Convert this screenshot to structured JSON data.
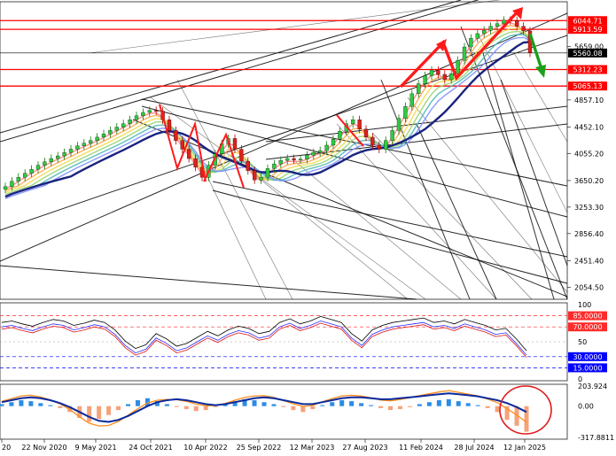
{
  "chart_data": [
    {
      "type": "candlestick",
      "panel": "main",
      "y_ticks": [
        6044.71,
        5913.59,
        5659.0,
        5560.08,
        5312.23,
        5065.13,
        4857.1,
        4452.1,
        4055.2,
        3650.2,
        3253.3,
        2856.4,
        2451.4,
        2054.5
      ],
      "ylim": [
        1900,
        6300
      ],
      "x_tick_labels": [
        "20",
        "22 Nov 2020",
        "9 May 2021",
        "24 Oct 2021",
        "10 Apr 2022",
        "25 Sep 2022",
        "12 Mar 2023",
        "27 Aug 2023",
        "11 Feb 2024",
        "28 Jul 2024",
        "12 Jan 2025"
      ],
      "price_series": [
        3560,
        3640,
        3700,
        3760,
        3820,
        3880,
        3930,
        3980,
        4020,
        4070,
        4120,
        4170,
        4210,
        4250,
        4300,
        4350,
        4400,
        4450,
        4500,
        4560,
        4620,
        4670,
        4700,
        4690,
        4560,
        4400,
        4250,
        4120,
        3980,
        3850,
        3700,
        3880,
        4050,
        4200,
        4280,
        4120,
        3940,
        3800,
        3660,
        3700,
        3830,
        3900,
        3950,
        3980,
        3960,
        3970,
        4030,
        4070,
        4100,
        4180,
        4270,
        4390,
        4500,
        4560,
        4420,
        4300,
        4180,
        4120,
        4250,
        4400,
        4580,
        4760,
        4950,
        5100,
        5220,
        5300,
        5240,
        5160,
        5250,
        5450,
        5650,
        5780,
        5850,
        5900,
        5960,
        6000,
        6050,
        6044,
        5960,
        5890,
        5560
      ],
      "highlighted_levels": [
        {
          "label": "6044.71",
          "value": 6044.71,
          "color": "#ff0000"
        },
        {
          "label": "5913.59",
          "value": 5913.59,
          "color": "#ff0000"
        },
        {
          "label": "5560.08",
          "value": 5560.08,
          "color": "#000000"
        },
        {
          "label": "5312.23",
          "value": 5312.23,
          "color": "#ff0000"
        },
        {
          "label": "5065.13",
          "value": 5065.13,
          "color": "#ff0000"
        }
      ]
    },
    {
      "type": "line",
      "panel": "rsi",
      "y_ticks": [
        "100",
        "85.0000",
        "70.0000",
        "50",
        "30.0000",
        "15.0000",
        "0"
      ],
      "levels": [
        85,
        70,
        30,
        15
      ],
      "ylim": [
        0,
        100
      ],
      "series": [
        {
          "values": [
            70,
            72,
            68,
            65,
            70,
            74,
            72,
            66,
            69,
            73,
            70,
            60,
            45,
            35,
            40,
            55,
            48,
            38,
            42,
            50,
            58,
            52,
            60,
            65,
            62,
            55,
            58,
            70,
            75,
            68,
            72,
            78,
            74,
            70,
            55,
            45,
            60,
            66,
            70,
            72,
            74,
            76,
            70,
            72,
            68,
            74,
            70,
            66,
            60,
            62,
            48,
            32
          ]
        }
      ]
    },
    {
      "type": "histogram",
      "panel": "macd",
      "y_ticks": [
        "203.924",
        "0.00",
        "-317.8811"
      ],
      "ylim": [
        -317.8811,
        203.924
      ],
      "histogram": [
        20,
        40,
        60,
        50,
        30,
        10,
        -20,
        -60,
        -120,
        -160,
        -130,
        -90,
        -40,
        20,
        60,
        80,
        50,
        20,
        -10,
        -30,
        -50,
        -40,
        -10,
        20,
        50,
        70,
        60,
        40,
        20,
        -10,
        -40,
        -60,
        -30,
        10,
        40,
        60,
        50,
        30,
        10,
        -20,
        -40,
        -30,
        -10,
        20,
        40,
        60,
        70,
        50,
        30,
        10,
        -20,
        -60,
        -140,
        -200,
        -260
      ],
      "signal": [
        40,
        60,
        80,
        90,
        80,
        60,
        30,
        -10,
        -60,
        -110,
        -150,
        -160,
        -140,
        -100,
        -50,
        0,
        40,
        60,
        70,
        60,
        40,
        20,
        10,
        20,
        40,
        60,
        80,
        90,
        80,
        60,
        40,
        20,
        20,
        40,
        60,
        80,
        90,
        90,
        80,
        70,
        70,
        80,
        90,
        100,
        110,
        120,
        130,
        120,
        110,
        100,
        80,
        60,
        30,
        -10,
        -60
      ]
    }
  ]
}
